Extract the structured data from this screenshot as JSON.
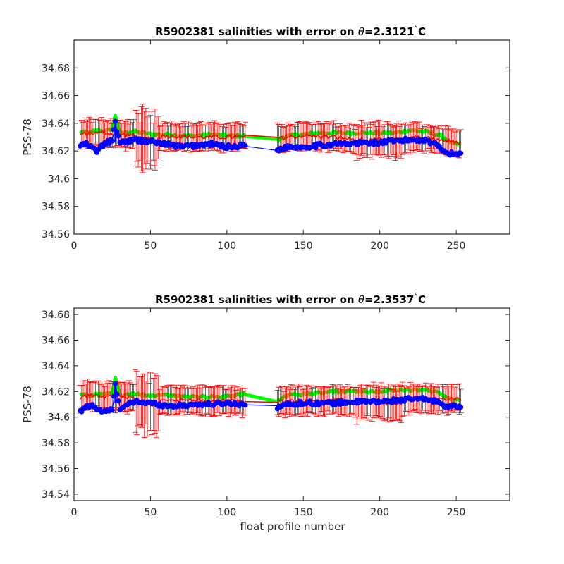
{
  "chart_data": [
    {
      "type": "scatter",
      "title_prefix": "R5902381 salinities with error on ",
      "title_symbol": "θ",
      "title_value": "=2.3121",
      "title_degree": "°",
      "title_unit": "C",
      "xlabel": "",
      "ylabel": "PSS-78",
      "xlim": [
        0,
        285
      ],
      "ylim": [
        34.56,
        34.7
      ],
      "xticks": [
        0,
        50,
        100,
        150,
        200,
        250
      ],
      "yticks": [
        34.56,
        34.58,
        34.6,
        34.62,
        34.64,
        34.66,
        34.68
      ],
      "ytick_labels": [
        "34.56",
        "34.58",
        "34.6",
        "34.62",
        "34.64",
        "34.66",
        "34.68"
      ],
      "colors": {
        "raw": "#0000ff",
        "calibrated": "#ff0000",
        "mapped": "#00ff00"
      },
      "gaps": [
        [
          112,
          133
        ]
      ],
      "x_range": [
        4,
        253
      ],
      "series": [
        {
          "key": "mapped",
          "values_at": [
            [
              4,
              34.634
            ],
            [
              10,
              34.633
            ],
            [
              15,
              34.635
            ],
            [
              20,
              34.634
            ],
            [
              25,
              34.636
            ],
            [
              27,
              34.646
            ],
            [
              30,
              34.633
            ],
            [
              40,
              34.634
            ],
            [
              50,
              34.632
            ],
            [
              60,
              34.632
            ],
            [
              70,
              34.631
            ],
            [
              80,
              34.631
            ],
            [
              90,
              34.632
            ],
            [
              100,
              34.631
            ],
            [
              112,
              34.631
            ],
            [
              120,
              34.63
            ],
            [
              133,
              34.628
            ],
            [
              140,
              34.631
            ],
            [
              150,
              34.632
            ],
            [
              160,
              34.633
            ],
            [
              170,
              34.633
            ],
            [
              180,
              34.633
            ],
            [
              190,
              34.633
            ],
            [
              200,
              34.633
            ],
            [
              210,
              34.633
            ],
            [
              220,
              34.635
            ],
            [
              230,
              34.634
            ],
            [
              240,
              34.631
            ],
            [
              248,
              34.625
            ]
          ]
        },
        {
          "key": "calibrated",
          "values_at": [
            [
              4,
              34.632
            ],
            [
              10,
              34.633
            ],
            [
              20,
              34.633
            ],
            [
              30,
              34.632
            ],
            [
              45,
              34.631
            ],
            [
              50,
              34.629
            ],
            [
              60,
              34.631
            ],
            [
              80,
              34.63
            ],
            [
              100,
              34.63
            ],
            [
              112,
              34.63
            ],
            [
              133,
              34.629
            ],
            [
              150,
              34.631
            ],
            [
              170,
              34.63
            ],
            [
              185,
              34.628
            ],
            [
              200,
              34.629
            ],
            [
              210,
              34.628
            ],
            [
              220,
              34.63
            ],
            [
              235,
              34.629
            ],
            [
              250,
              34.626
            ]
          ],
          "error": 0.009
        },
        {
          "key": "raw",
          "values_at": [
            [
              4,
              34.624
            ],
            [
              8,
              34.625
            ],
            [
              12,
              34.622
            ],
            [
              15,
              34.62
            ],
            [
              20,
              34.625
            ],
            [
              25,
              34.628
            ],
            [
              27,
              34.64
            ],
            [
              30,
              34.626
            ],
            [
              40,
              34.628
            ],
            [
              50,
              34.627
            ],
            [
              60,
              34.625
            ],
            [
              70,
              34.623
            ],
            [
              80,
              34.624
            ],
            [
              90,
              34.625
            ],
            [
              100,
              34.623
            ],
            [
              112,
              34.624
            ],
            [
              133,
              34.621
            ],
            [
              140,
              34.623
            ],
            [
              150,
              34.623
            ],
            [
              160,
              34.624
            ],
            [
              170,
              34.625
            ],
            [
              180,
              34.625
            ],
            [
              190,
              34.626
            ],
            [
              200,
              34.626
            ],
            [
              210,
              34.627
            ],
            [
              220,
              34.628
            ],
            [
              230,
              34.628
            ],
            [
              238,
              34.624
            ],
            [
              245,
              34.618
            ],
            [
              253,
              34.618
            ]
          ]
        }
      ]
    },
    {
      "type": "scatter",
      "title_prefix": "R5902381 salinities with error on ",
      "title_symbol": "θ",
      "title_value": "=2.3537",
      "title_degree": "°",
      "title_unit": "C",
      "xlabel": "float profile number",
      "ylabel": "PSS-78",
      "xlim": [
        0,
        285
      ],
      "ylim": [
        34.535,
        34.685
      ],
      "xticks": [
        0,
        50,
        100,
        150,
        200,
        250
      ],
      "yticks": [
        34.54,
        34.56,
        34.58,
        34.6,
        34.62,
        34.64,
        34.66,
        34.68
      ],
      "ytick_labels": [
        "34.54",
        "34.56",
        "34.58",
        "34.6",
        "34.62",
        "34.64",
        "34.66",
        "34.68"
      ],
      "colors": {
        "raw": "#0000ff",
        "calibrated": "#ff0000",
        "mapped": "#00ff00"
      },
      "gaps": [
        [
          112,
          133
        ]
      ],
      "x_range": [
        4,
        253
      ],
      "series": [
        {
          "key": "mapped",
          "values_at": [
            [
              4,
              34.618
            ],
            [
              10,
              34.617
            ],
            [
              20,
              34.618
            ],
            [
              25,
              34.62
            ],
            [
              27,
              34.63
            ],
            [
              30,
              34.617
            ],
            [
              40,
              34.618
            ],
            [
              50,
              34.617
            ],
            [
              60,
              34.617
            ],
            [
              70,
              34.616
            ],
            [
              80,
              34.616
            ],
            [
              90,
              34.616
            ],
            [
              100,
              34.616
            ],
            [
              112,
              34.618
            ],
            [
              120,
              34.617
            ],
            [
              133,
              34.612
            ],
            [
              140,
              34.617
            ],
            [
              150,
              34.618
            ],
            [
              160,
              34.619
            ],
            [
              170,
              34.62
            ],
            [
              180,
              34.62
            ],
            [
              190,
              34.62
            ],
            [
              200,
              34.62
            ],
            [
              210,
              34.621
            ],
            [
              220,
              34.621
            ],
            [
              230,
              34.622
            ],
            [
              240,
              34.618
            ],
            [
              248,
              34.613
            ]
          ]
        },
        {
          "key": "calibrated",
          "values_at": [
            [
              4,
              34.615
            ],
            [
              10,
              34.617
            ],
            [
              20,
              34.616
            ],
            [
              30,
              34.616
            ],
            [
              45,
              34.614
            ],
            [
              50,
              34.612
            ],
            [
              60,
              34.614
            ],
            [
              80,
              34.613
            ],
            [
              100,
              34.613
            ],
            [
              112,
              34.612
            ],
            [
              133,
              34.612
            ],
            [
              150,
              34.613
            ],
            [
              170,
              34.613
            ],
            [
              185,
              34.612
            ],
            [
              200,
              34.613
            ],
            [
              210,
              34.612
            ],
            [
              220,
              34.614
            ],
            [
              235,
              34.614
            ],
            [
              250,
              34.614
            ]
          ],
          "error": 0.01
        },
        {
          "key": "raw",
          "values_at": [
            [
              4,
              34.604
            ],
            [
              8,
              34.608
            ],
            [
              12,
              34.61
            ],
            [
              15,
              34.606
            ],
            [
              20,
              34.604
            ],
            [
              25,
              34.606
            ],
            [
              27,
              34.625
            ],
            [
              30,
              34.607
            ],
            [
              40,
              34.612
            ],
            [
              50,
              34.611
            ],
            [
              60,
              34.609
            ],
            [
              70,
              34.609
            ],
            [
              80,
              34.61
            ],
            [
              90,
              34.61
            ],
            [
              100,
              34.611
            ],
            [
              112,
              34.61
            ],
            [
              133,
              34.608
            ],
            [
              140,
              34.61
            ],
            [
              150,
              34.611
            ],
            [
              160,
              34.611
            ],
            [
              170,
              34.611
            ],
            [
              180,
              34.612
            ],
            [
              190,
              34.612
            ],
            [
              200,
              34.612
            ],
            [
              210,
              34.613
            ],
            [
              220,
              34.614
            ],
            [
              230,
              34.614
            ],
            [
              238,
              34.612
            ],
            [
              245,
              34.608
            ],
            [
              253,
              34.609
            ]
          ]
        }
      ]
    }
  ]
}
